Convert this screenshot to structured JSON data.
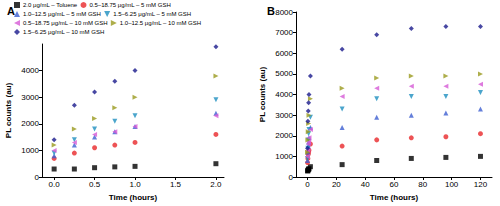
{
  "chart_data": [
    {
      "type": "scatter",
      "title": "A",
      "x_label": "Time (hours)",
      "y_label": "PL counts (au)",
      "legend": "top",
      "grid": false,
      "xlim": [
        -0.15,
        2.1
      ],
      "xticks": [
        {
          "value": 0,
          "label": "0.0"
        },
        {
          "value": 0.5,
          "label": "0.5"
        },
        {
          "value": 1,
          "label": "1.0"
        },
        {
          "value": 1.5,
          "label": "1.5"
        },
        {
          "value": 2,
          "label": "2.0"
        }
      ],
      "ylim": [
        0,
        5000
      ],
      "yticks": [
        0,
        1000,
        2000,
        3000,
        4000
      ],
      "x": [
        0,
        0.25,
        0.5,
        0.75,
        1,
        2
      ],
      "series": [
        {
          "name": "2.0 μg/mL – Toluene",
          "color": "#000000",
          "marker": "square",
          "values": [
            300,
            300,
            350,
            380,
            400,
            500
          ]
        },
        {
          "name": "0.5–18.75 μg/mL – 5 mM GSH",
          "color": "#e8282b",
          "marker": "circle",
          "values": [
            700,
            900,
            1100,
            1200,
            1300,
            1600
          ]
        },
        {
          "name": "1.0–12.5 μg/mL – 5 mM GSH",
          "color": "#3d5fd1",
          "marker": "triangle-up",
          "values": [
            800,
            1200,
            1500,
            1700,
            1900,
            2400
          ]
        },
        {
          "name": "1.5–6.25 μg/mL – 5 mM GSH",
          "color": "#1e8fbf",
          "marker": "triangle-down",
          "values": [
            900,
            1400,
            1800,
            2100,
            2300,
            2900
          ]
        },
        {
          "name": "0.5–18.75 μg/mL – 10 mM GSH",
          "color": "#d65ad6",
          "marker": "triangle-left",
          "values": [
            1000,
            1300,
            1600,
            1700,
            1900,
            2300
          ]
        },
        {
          "name": "1.0–12.5 μg/mL – 10 mM GSH",
          "color": "#9a9a1e",
          "marker": "triangle-right",
          "values": [
            1200,
            1800,
            2200,
            2600,
            3000,
            3800
          ]
        },
        {
          "name": "1.5–6.25 μg/mL – 10 mM GSH",
          "color": "#1a1a8c",
          "marker": "diamond",
          "values": [
            1400,
            2700,
            3200,
            3600,
            4000,
            4900
          ]
        }
      ]
    },
    {
      "type": "scatter",
      "title": "B",
      "x_label": "Time (hours)",
      "y_label": "PL counts (au)",
      "grid": false,
      "xlim": [
        -8,
        128
      ],
      "xticks": [
        0,
        20,
        40,
        60,
        80,
        100,
        120
      ],
      "ylim": [
        0,
        8000
      ],
      "yticks": [
        0,
        1000,
        2000,
        3000,
        4000,
        5000,
        6000,
        7000,
        8000
      ],
      "x": [
        0,
        0.25,
        0.5,
        0.75,
        1,
        2,
        24,
        48,
        72,
        96,
        120
      ],
      "series": [
        {
          "name": "2.0 μg/mL – Toluene",
          "color": "#000000",
          "marker": "square",
          "values": [
            300,
            300,
            350,
            380,
            400,
            500,
            600,
            800,
            900,
            950,
            1000
          ]
        },
        {
          "name": "0.5–18.75 μg/mL – 5 mM GSH",
          "color": "#e8282b",
          "marker": "circle",
          "values": [
            700,
            900,
            1100,
            1200,
            1300,
            1600,
            1500,
            1800,
            1900,
            1950,
            2100
          ]
        },
        {
          "name": "1.0–12.5 μg/mL – 5 mM GSH",
          "color": "#3d5fd1",
          "marker": "triangle-up",
          "values": [
            800,
            1200,
            1500,
            1700,
            1900,
            2400,
            2400,
            2900,
            3000,
            3100,
            3300
          ]
        },
        {
          "name": "1.5–6.25 μg/mL – 5 mM GSH",
          "color": "#1e8fbf",
          "marker": "triangle-down",
          "values": [
            900,
            1400,
            1800,
            2100,
            2300,
            2900,
            3300,
            3800,
            3900,
            3900,
            4100
          ]
        },
        {
          "name": "0.5–18.75 μg/mL – 10 mM GSH",
          "color": "#d65ad6",
          "marker": "triangle-left",
          "values": [
            1000,
            1300,
            1600,
            1700,
            1900,
            2300,
            3900,
            4300,
            4400,
            4400,
            4500
          ]
        },
        {
          "name": "1.0–12.5 μg/mL – 10 mM GSH",
          "color": "#9a9a1e",
          "marker": "triangle-right",
          "values": [
            1200,
            1800,
            2200,
            2600,
            3000,
            3800,
            4300,
            4800,
            4900,
            4900,
            5000
          ]
        },
        {
          "name": "1.5–6.25 μg/mL – 10 mM GSH",
          "color": "#1a1a8c",
          "marker": "diamond",
          "values": [
            1400,
            2700,
            3200,
            3600,
            4000,
            4900,
            6200,
            6900,
            7200,
            7300,
            7300
          ]
        }
      ]
    }
  ]
}
